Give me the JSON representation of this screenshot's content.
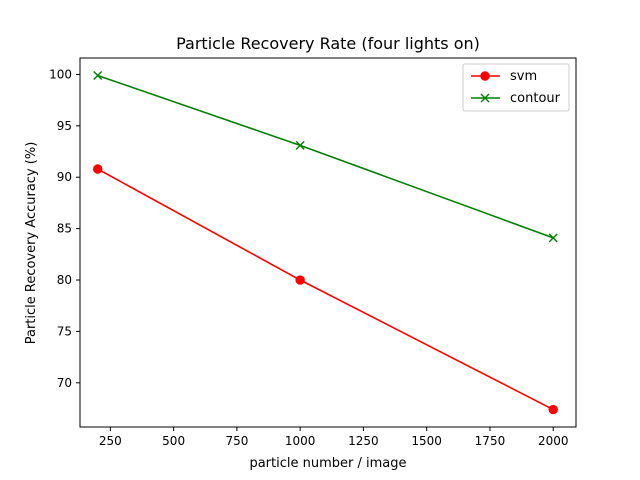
{
  "chart_data": {
    "type": "line",
    "title": "Particle Recovery Rate (four lights on)",
    "xlabel": "particle number / image",
    "ylabel": "Particle Recovery Accuracy (%)",
    "xlim": [
      130,
      2090
    ],
    "ylim": [
      65.7,
      101.6
    ],
    "xticks": [
      250,
      500,
      750,
      1000,
      1250,
      1500,
      1750,
      2000
    ],
    "yticks": [
      70,
      75,
      80,
      85,
      90,
      95,
      100
    ],
    "grid": false,
    "legend_position": "top-right",
    "x": [
      200,
      1000,
      2000
    ],
    "series": [
      {
        "name": "svm",
        "values": [
          90.8,
          80.0,
          67.4
        ],
        "color": "#ff0000",
        "marker": "circle"
      },
      {
        "name": "contour",
        "values": [
          99.9,
          93.1,
          84.1
        ],
        "color": "#008000",
        "marker": "x"
      }
    ]
  }
}
